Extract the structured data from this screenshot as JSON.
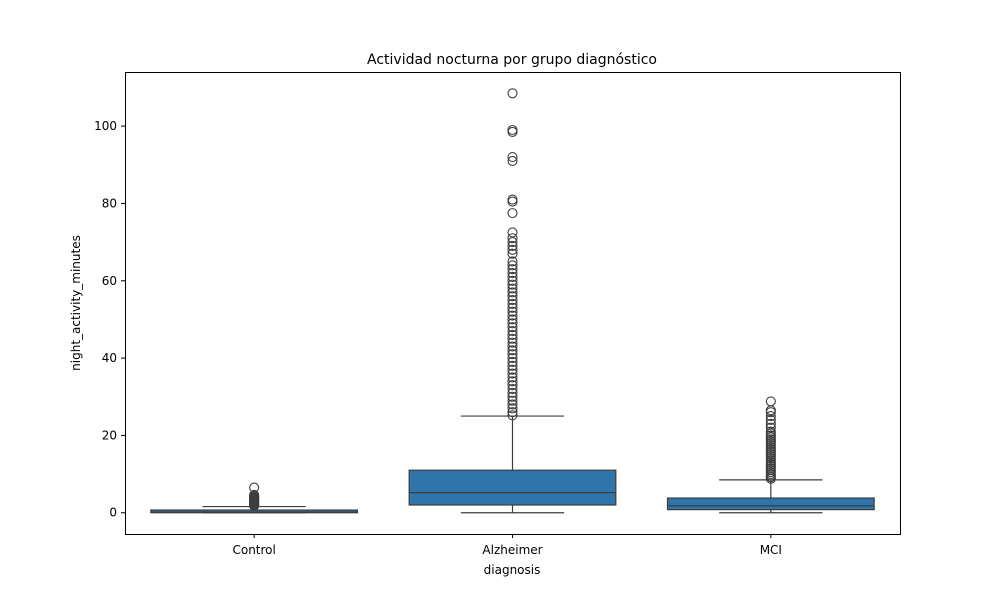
{
  "chart_data": {
    "type": "box",
    "title": "Actividad nocturna por grupo diagnóstico",
    "xlabel": "diagnosis",
    "ylabel": "night_activity_minutes",
    "ylim": [
      -5.5,
      114
    ],
    "yticks": [
      0,
      20,
      40,
      60,
      80,
      100
    ],
    "grid": false,
    "box_color": "#2f75ab",
    "categories": [
      "Control",
      "Alzheimer",
      "MCI"
    ],
    "boxes": [
      {
        "category": "Control",
        "whisker_low": 0.0,
        "q1": 0.0,
        "median": 0.2,
        "q3": 0.7,
        "whisker_high": 1.6,
        "outliers": [
          1.8,
          2.0,
          2.2,
          2.4,
          2.6,
          2.8,
          3.0,
          3.2,
          3.4,
          3.6,
          3.8,
          4.0,
          4.3,
          4.6,
          6.5
        ]
      },
      {
        "category": "Alzheimer",
        "whisker_low": 0.0,
        "q1": 2.0,
        "median": 5.2,
        "q3": 11.0,
        "whisker_high": 25.0,
        "outliers": [
          25.2,
          26,
          27,
          28,
          29,
          30,
          31,
          32,
          33,
          34,
          35,
          36,
          37,
          38,
          39,
          40,
          41,
          42,
          43,
          44,
          45,
          46,
          47,
          48,
          49,
          50,
          51,
          52,
          53,
          54,
          55,
          56,
          57,
          58,
          59,
          60,
          61,
          62,
          63,
          64,
          65,
          67,
          68,
          69,
          70,
          71,
          72.5,
          77.5,
          80.5,
          81,
          91,
          92,
          98.5,
          99,
          108.5
        ]
      },
      {
        "category": "MCI",
        "whisker_low": 0.0,
        "q1": 0.8,
        "median": 1.8,
        "q3": 3.8,
        "whisker_high": 8.5,
        "outliers": [
          8.8,
          9.2,
          9.6,
          10,
          10.5,
          11,
          11.5,
          12,
          12.5,
          13,
          13.5,
          14,
          14.5,
          15,
          15.5,
          16,
          16.5,
          17,
          17.5,
          18,
          18.5,
          19,
          19.5,
          20,
          20.5,
          21,
          22,
          23,
          24,
          25,
          26,
          26.5,
          28.8
        ]
      }
    ]
  }
}
